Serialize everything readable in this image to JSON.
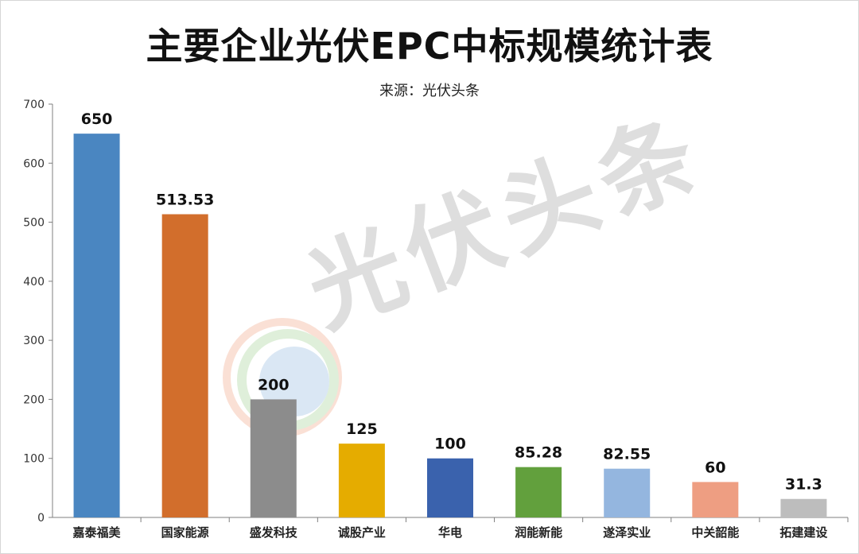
{
  "title": "主要企业光伏EPC中标规模统计表",
  "subtitle": "来源：光伏头条",
  "watermark": {
    "text": "光伏头条"
  },
  "chart_data": {
    "type": "bar",
    "title": "主要企业光伏EPC中标规模统计表",
    "subtitle": "来源：光伏头条",
    "categories": [
      "嘉泰福美",
      "国家能源",
      "盛发科技",
      "诚股产业",
      "华电",
      "润能新能",
      "遂泽实业",
      "中关韶能",
      "拓建建设"
    ],
    "values": [
      650,
      513.53,
      200,
      125,
      100,
      85.28,
      82.55,
      60,
      31.3
    ],
    "value_labels": [
      "650",
      "513.53",
      "200",
      "125",
      "100",
      "85.28",
      "82.55",
      "60",
      "31.3"
    ],
    "colors": [
      "#4a86c1",
      "#d26e2c",
      "#8c8c8c",
      "#e5ac00",
      "#3a62ad",
      "#62a03d",
      "#94b6df",
      "#ee9e82",
      "#bdbdbd"
    ],
    "yticks": [
      0,
      100,
      200,
      300,
      400,
      500,
      600,
      700
    ],
    "ylim": [
      0,
      700
    ],
    "xlabel": "",
    "ylabel": "",
    "grid": false,
    "legend": "none"
  }
}
